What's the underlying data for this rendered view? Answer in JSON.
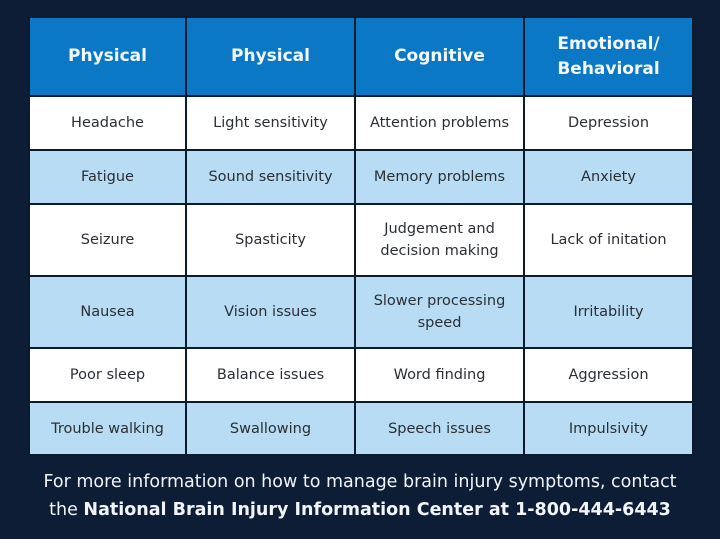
{
  "colors": {
    "background": "#0e1d36",
    "header": "#0b78c5",
    "row_light": "#b8dcf3",
    "row_white": "#ffffff"
  },
  "table": {
    "headers": [
      "Physical",
      "Physical",
      "Cognitive",
      "Emotional/ Behavioral"
    ],
    "rows": [
      [
        "Headache",
        "Light sensitivity",
        "Attention problems",
        "Depression"
      ],
      [
        "Fatigue",
        "Sound sensitivity",
        "Memory problems",
        "Anxiety"
      ],
      [
        "Seizure",
        "Spasticity",
        "Judgement and decision making",
        "Lack of initation"
      ],
      [
        "Nausea",
        "Vision issues",
        "Slower processing speed",
        "Irritability"
      ],
      [
        "Poor sleep",
        "Balance issues",
        "Word finding",
        "Aggression"
      ],
      [
        "Trouble walking",
        "Swallowing",
        "Speech issues",
        "Impulsivity"
      ]
    ]
  },
  "footer": {
    "line1": "For more information on how to manage brain injury symptoms, contact",
    "line2_prefix": "the ",
    "line2_bold": "National Brain Injury Information Center at 1-800-444-6443"
  }
}
